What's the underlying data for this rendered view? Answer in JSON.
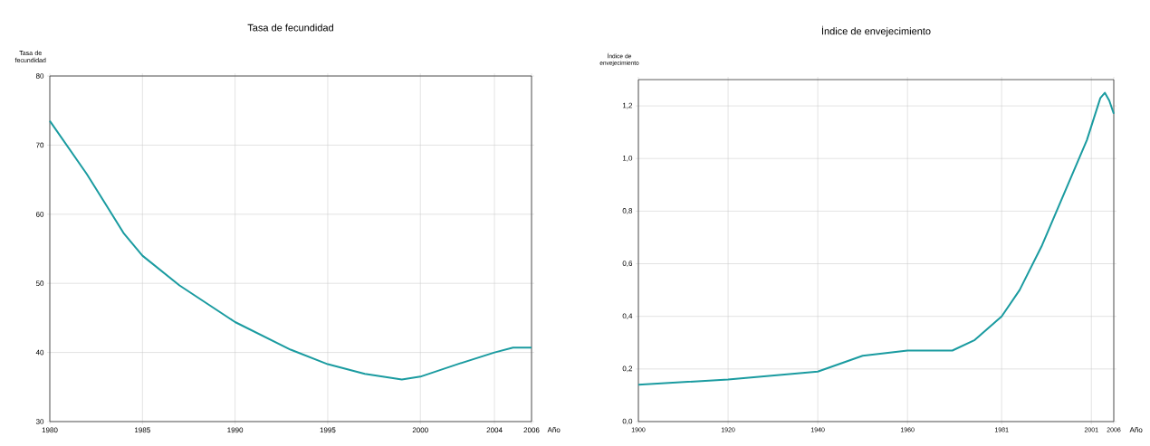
{
  "chart_data": [
    {
      "type": "line",
      "title": "Tasa de fecundidad",
      "ylabel": "Tasa de fecundidad",
      "xlabel": "Año",
      "x": [
        1980,
        1982,
        1983,
        1984,
        1985,
        1987,
        1990,
        1993,
        1995,
        1997,
        1999,
        2000,
        2002,
        2004,
        2005,
        2006
      ],
      "series": [
        {
          "color": "#1a9ba0",
          "values": [
            73.5,
            65.8,
            61.5,
            57.2,
            54.0,
            49.7,
            44.4,
            40.4,
            38.3,
            36.9,
            36.1,
            36.5,
            38.3,
            40.0,
            40.7,
            40.7
          ]
        }
      ],
      "xlim": [
        1980,
        2006
      ],
      "xticks": [
        1980,
        1985,
        1990,
        1995,
        2000,
        2004,
        2006
      ],
      "ylim": [
        30,
        80
      ],
      "yticks": [
        30,
        40,
        50,
        60,
        70,
        80
      ],
      "grid": true
    },
    {
      "type": "line",
      "title": "İndice de envejecimiento",
      "ylabel": "Índice de envejecimiento",
      "xlabel": "Año",
      "x": [
        1900,
        1920,
        1940,
        1945,
        1950,
        1960,
        1965,
        1970,
        1975,
        1981,
        1985,
        1990,
        1995,
        2000,
        2003,
        2004,
        2005,
        2006
      ],
      "series": [
        {
          "color": "#1a9ba0",
          "values": [
            0.14,
            0.16,
            0.19,
            0.22,
            0.25,
            0.27,
            0.27,
            0.27,
            0.31,
            0.4,
            0.5,
            0.67,
            0.87,
            1.07,
            1.23,
            1.25,
            1.22,
            1.17
          ]
        }
      ],
      "xlim": [
        1900,
        2006
      ],
      "xticks": [
        1900,
        1920,
        1940,
        1960,
        1981,
        2001,
        2006
      ],
      "ylim": [
        0,
        1.3
      ],
      "yticks": [
        {
          "value": 0,
          "label": "0,0"
        },
        {
          "value": 0.2,
          "label": "0,2"
        },
        {
          "value": 0.4,
          "label": "0,4"
        },
        {
          "value": 0.6,
          "label": "0,6"
        },
        {
          "value": 0.8,
          "label": "0,8"
        },
        {
          "value": 1.0,
          "label": "1,0"
        },
        {
          "value": 1.2,
          "label": "1,2"
        }
      ],
      "grid": true
    }
  ]
}
